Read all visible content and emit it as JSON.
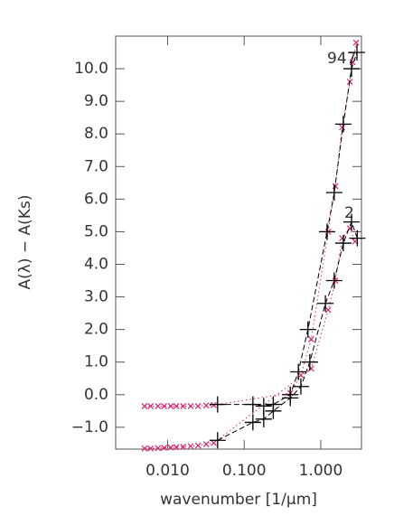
{
  "chart_data": {
    "type": "scatter",
    "xlabel": "wavenumber [1/μm]",
    "ylabel": "A(λ) − A(Ks)",
    "log_x": true,
    "xlim": [
      0.0021,
      3.4
    ],
    "ylim": [
      -1.67,
      11.0
    ],
    "xticks": [
      {
        "value": 0.01,
        "label": "0.010"
      },
      {
        "value": 0.1,
        "label": "0.100"
      },
      {
        "value": 1,
        "label": "1.000"
      }
    ],
    "yticks": [
      {
        "value": -1,
        "label": "−1.0"
      },
      {
        "value": 0,
        "label": "0.0"
      },
      {
        "value": 1,
        "label": "1.0"
      },
      {
        "value": 2,
        "label": "2.0"
      },
      {
        "value": 3,
        "label": "3.0"
      },
      {
        "value": 4,
        "label": "4.0"
      },
      {
        "value": 5,
        "label": "5.0"
      },
      {
        "value": 6,
        "label": "6.0"
      },
      {
        "value": 7,
        "label": "7.0"
      },
      {
        "value": 8,
        "label": "8.0"
      },
      {
        "value": 9,
        "label": "9.0"
      },
      {
        "value": 10,
        "label": "10.0"
      }
    ],
    "annotations": [
      "947",
      "2"
    ],
    "series": [
      {
        "color": "#d6246c",
        "marker": "x",
        "line": "dotted",
        "x": [
          0.005,
          0.006,
          0.0075,
          0.009,
          0.011,
          0.013,
          0.016,
          0.02,
          0.025,
          0.032,
          0.04,
          0.4,
          0.55,
          0.75,
          1.25,
          1.55,
          1.9,
          2.4,
          2.6,
          2.9
        ],
        "values": [
          -0.35,
          -0.35,
          -0.35,
          -0.35,
          -0.35,
          -0.35,
          -0.35,
          -0.35,
          -0.35,
          -0.33,
          -0.32,
          0.05,
          0.6,
          1.7,
          5.0,
          6.4,
          8.2,
          9.6,
          10.2,
          10.8
        ]
      },
      {
        "color": "#d6246c",
        "marker": "x",
        "line": "dotted",
        "x": [
          0.005,
          0.006,
          0.0075,
          0.009,
          0.011,
          0.013,
          0.016,
          0.02,
          0.025,
          0.032,
          0.04,
          0.75,
          1.25,
          1.55,
          1.9,
          2.4,
          2.8
        ],
        "values": [
          -1.65,
          -1.65,
          -1.64,
          -1.63,
          -1.62,
          -1.61,
          -1.6,
          -1.58,
          -1.56,
          -1.52,
          -1.48,
          0.8,
          2.6,
          3.5,
          4.8,
          5.1,
          4.7
        ]
      },
      {
        "color": "#000000",
        "marker": "plus",
        "line": "dashed",
        "x": [
          0.045,
          0.13,
          0.18,
          0.24,
          0.4,
          0.51,
          0.68,
          1.21,
          1.5,
          1.97,
          2.52,
          2.97
        ],
        "values": [
          -0.3,
          -0.3,
          -0.35,
          -0.3,
          0.0,
          0.7,
          2.0,
          5.0,
          6.2,
          8.3,
          10.0,
          10.5
        ]
      },
      {
        "color": "#000000",
        "marker": "plus",
        "line": "dashed",
        "x": [
          0.045,
          0.13,
          0.18,
          0.24,
          0.4,
          0.55,
          0.72,
          1.15,
          1.5,
          1.97,
          2.52,
          3.0
        ],
        "values": [
          -1.4,
          -0.85,
          -0.75,
          -0.5,
          -0.1,
          0.25,
          1.0,
          2.8,
          3.5,
          4.65,
          5.3,
          4.8
        ]
      }
    ]
  }
}
